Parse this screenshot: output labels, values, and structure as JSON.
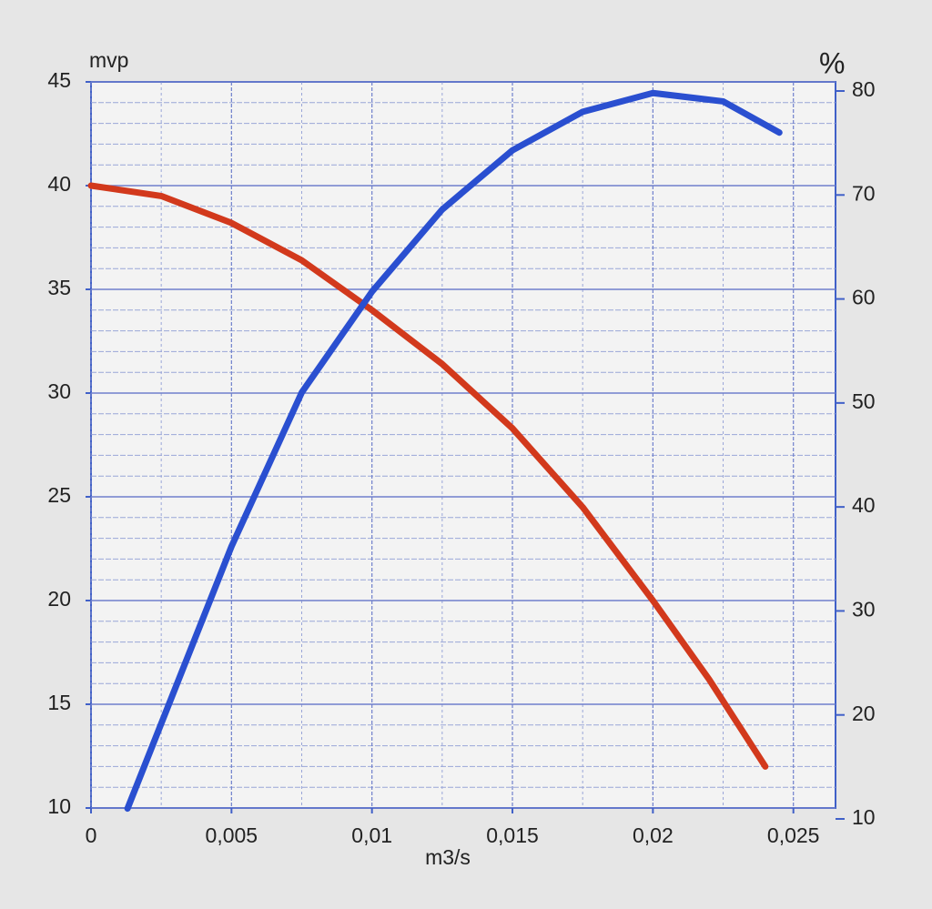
{
  "chart_data": {
    "type": "line",
    "y_label": "mvp",
    "y2_label": "%",
    "x_label": "m3/s",
    "xlim": [
      0,
      0.0265
    ],
    "xticks": [
      0,
      {
        "value": 0.005,
        "label": "0,005"
      },
      {
        "value": 0.01,
        "label": "0,01"
      },
      {
        "value": 0.015,
        "label": "0,015"
      },
      {
        "value": 0.02,
        "label": "0,02"
      },
      {
        "value": 0.025,
        "label": "0,025"
      }
    ],
    "ylim": [
      10,
      45
    ],
    "yticks": [
      10,
      15,
      20,
      25,
      30,
      35,
      40,
      45
    ],
    "y2lim": [
      10,
      80
    ],
    "y2ticks": [
      10,
      20,
      30,
      40,
      50,
      60,
      70,
      80
    ],
    "grid": true,
    "series": [
      {
        "color": "#d2391c",
        "axis": "y",
        "x": [
          0,
          0.0025,
          0.005,
          0.0075,
          0.01,
          0.0125,
          0.015,
          0.0175,
          0.02,
          0.022,
          0.024
        ],
        "values": [
          40,
          39.5,
          38.2,
          36.4,
          34.0,
          31.4,
          28.3,
          24.5,
          20.0,
          16.2,
          12
        ]
      },
      {
        "color": "#2a4fd0",
        "axis": "y2",
        "x": [
          0.0013,
          0.005,
          0.0075,
          0.01,
          0.0125,
          0.015,
          0.0175,
          0.02,
          0.0225,
          0.0245
        ],
        "values": [
          11,
          36.2,
          51,
          60.7,
          68.6,
          74.3,
          78,
          79.8,
          79,
          76
        ]
      }
    ]
  }
}
